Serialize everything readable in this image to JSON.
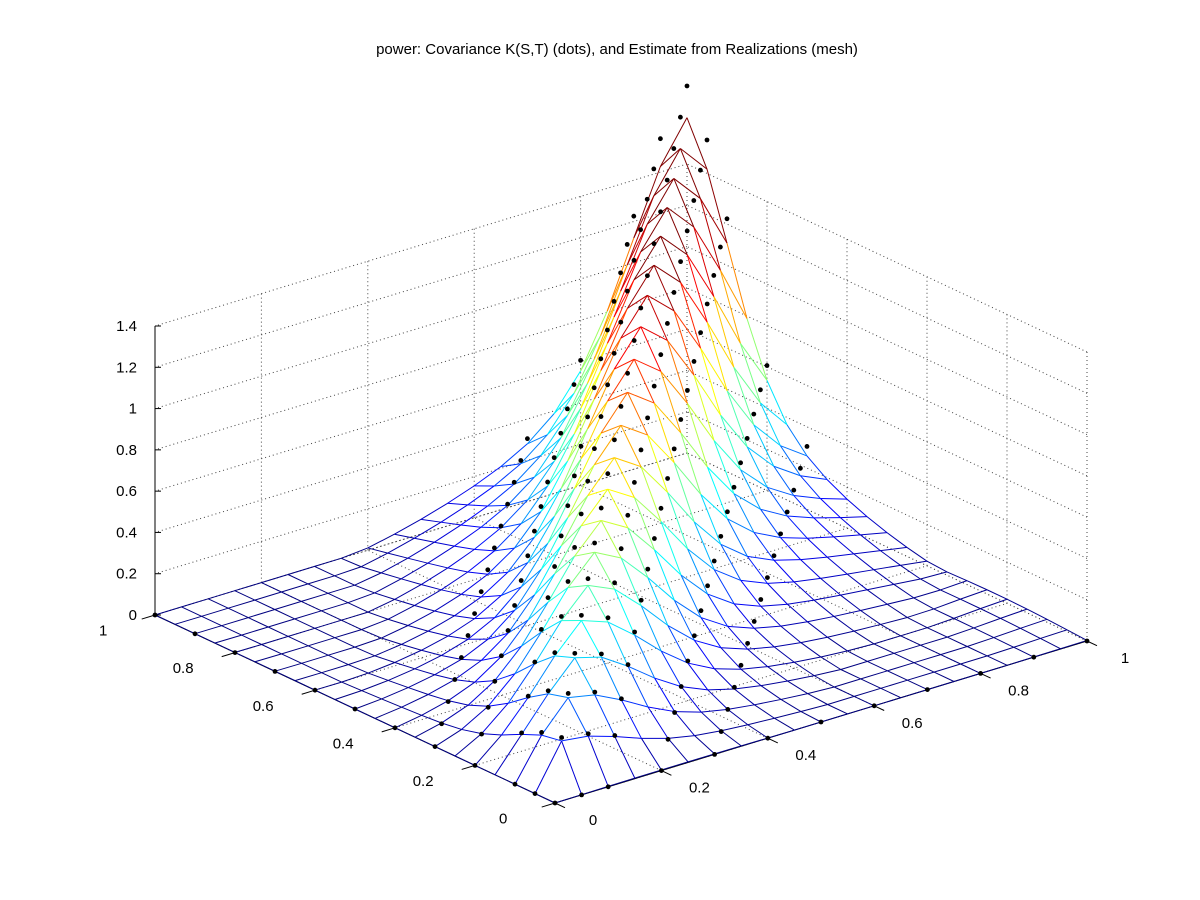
{
  "chart_data": {
    "type": "surface",
    "title": "power: Covariance K(S,T) (dots), and Estimate from Realizations (mesh)",
    "xlabel": "",
    "ylabel": "",
    "zlabel": "",
    "xlim": [
      0,
      1
    ],
    "ylim": [
      0,
      1
    ],
    "zlim": [
      0,
      1.4
    ],
    "x_ticks": [
      0,
      0.2,
      0.4,
      0.6,
      0.8,
      1
    ],
    "x_tick_labels": [
      "0",
      "0.2",
      "0.4",
      "0.6",
      "0.8",
      "1"
    ],
    "y_ticks": [
      0,
      0.2,
      0.4,
      0.6,
      0.8,
      1
    ],
    "y_tick_labels": [
      "0",
      "0.2",
      "0.4",
      "0.6",
      "0.8",
      "1"
    ],
    "z_ticks": [
      0,
      0.2,
      0.4,
      0.6,
      0.8,
      1,
      1.2,
      1.4
    ],
    "z_tick_labels": [
      "0",
      "0.2",
      "0.4",
      "0.6",
      "0.8",
      "1",
      "1.2",
      "1.4"
    ],
    "grid": true,
    "colormap": "jet",
    "series": [
      {
        "type": "mesh",
        "grid_size": 21,
        "x": [
          0,
          0.05,
          0.1,
          0.15,
          0.2,
          0.25,
          0.3,
          0.35,
          0.4,
          0.45,
          0.5,
          0.55,
          0.6,
          0.65,
          0.7,
          0.75,
          0.8,
          0.85,
          0.9,
          0.95,
          1
        ],
        "y": [
          0,
          0.05,
          0.1,
          0.15,
          0.2,
          0.25,
          0.3,
          0.35,
          0.4,
          0.45,
          0.5,
          0.55,
          0.6,
          0.65,
          0.7,
          0.75,
          0.8,
          0.85,
          0.9,
          0.95,
          1
        ],
        "z_max": 1.28
      },
      {
        "type": "points",
        "marker": "*",
        "color": "#000000",
        "grid_size": 21,
        "z_max": 1.4
      }
    ]
  }
}
